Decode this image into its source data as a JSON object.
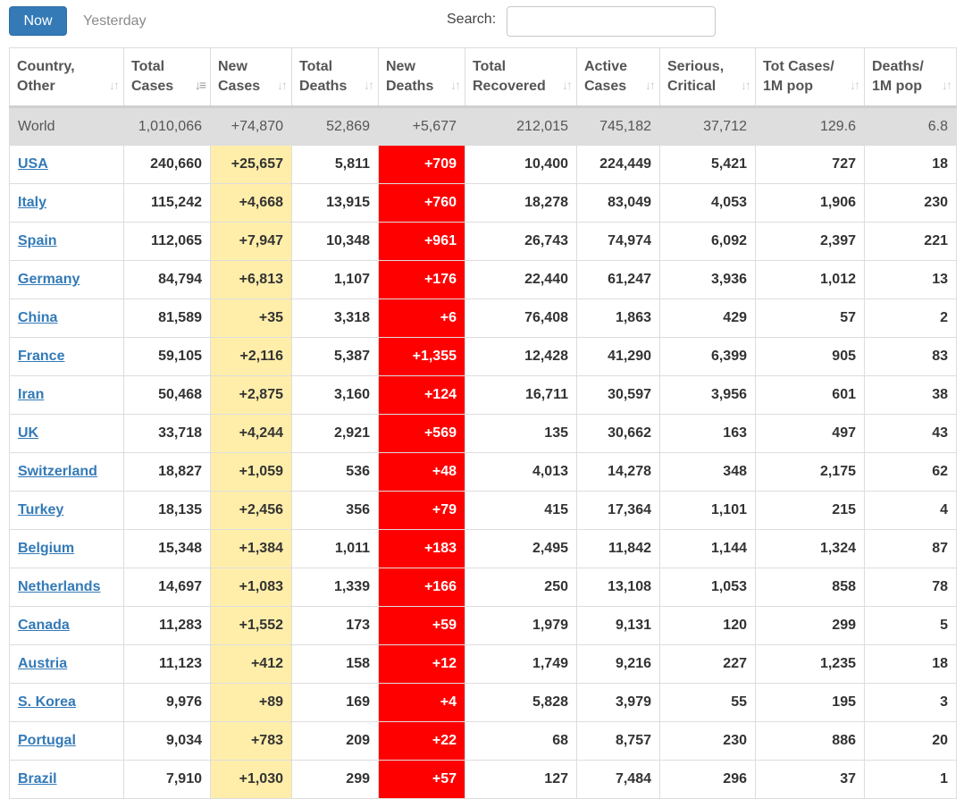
{
  "toolbar": {
    "now_label": "Now",
    "yesterday_label": "Yesterday",
    "search_label": "Search:",
    "search_value": ""
  },
  "colors": {
    "primary_button": "#337ab7",
    "new_cases_highlight": "#ffeeaa",
    "new_deaths_highlight": "#ff0000"
  },
  "table": {
    "headers": [
      {
        "line1": "Country,",
        "line2": "Other"
      },
      {
        "line1": "Total",
        "line2": "Cases"
      },
      {
        "line1": "New",
        "line2": "Cases"
      },
      {
        "line1": "Total",
        "line2": "Deaths"
      },
      {
        "line1": "New",
        "line2": "Deaths"
      },
      {
        "line1": "Total",
        "line2": "Recovered"
      },
      {
        "line1": "Active",
        "line2": "Cases"
      },
      {
        "line1": "Serious,",
        "line2": "Critical"
      },
      {
        "line1": "Tot Cases/",
        "line2": "1M pop"
      },
      {
        "line1": "Deaths/",
        "line2": "1M pop"
      }
    ],
    "world": [
      "World",
      "1,010,066",
      "+74,870",
      "52,869",
      "+5,677",
      "212,015",
      "745,182",
      "37,712",
      "129.6",
      "6.8"
    ],
    "rows": [
      [
        "USA",
        "240,660",
        "+25,657",
        "5,811",
        "+709",
        "10,400",
        "224,449",
        "5,421",
        "727",
        "18"
      ],
      [
        "Italy",
        "115,242",
        "+4,668",
        "13,915",
        "+760",
        "18,278",
        "83,049",
        "4,053",
        "1,906",
        "230"
      ],
      [
        "Spain",
        "112,065",
        "+7,947",
        "10,348",
        "+961",
        "26,743",
        "74,974",
        "6,092",
        "2,397",
        "221"
      ],
      [
        "Germany",
        "84,794",
        "+6,813",
        "1,107",
        "+176",
        "22,440",
        "61,247",
        "3,936",
        "1,012",
        "13"
      ],
      [
        "China",
        "81,589",
        "+35",
        "3,318",
        "+6",
        "76,408",
        "1,863",
        "429",
        "57",
        "2"
      ],
      [
        "France",
        "59,105",
        "+2,116",
        "5,387",
        "+1,355",
        "12,428",
        "41,290",
        "6,399",
        "905",
        "83"
      ],
      [
        "Iran",
        "50,468",
        "+2,875",
        "3,160",
        "+124",
        "16,711",
        "30,597",
        "3,956",
        "601",
        "38"
      ],
      [
        "UK",
        "33,718",
        "+4,244",
        "2,921",
        "+569",
        "135",
        "30,662",
        "163",
        "497",
        "43"
      ],
      [
        "Switzerland",
        "18,827",
        "+1,059",
        "536",
        "+48",
        "4,013",
        "14,278",
        "348",
        "2,175",
        "62"
      ],
      [
        "Turkey",
        "18,135",
        "+2,456",
        "356",
        "+79",
        "415",
        "17,364",
        "1,101",
        "215",
        "4"
      ],
      [
        "Belgium",
        "15,348",
        "+1,384",
        "1,011",
        "+183",
        "2,495",
        "11,842",
        "1,144",
        "1,324",
        "87"
      ],
      [
        "Netherlands",
        "14,697",
        "+1,083",
        "1,339",
        "+166",
        "250",
        "13,108",
        "1,053",
        "858",
        "78"
      ],
      [
        "Canada",
        "11,283",
        "+1,552",
        "173",
        "+59",
        "1,979",
        "9,131",
        "120",
        "299",
        "5"
      ],
      [
        "Austria",
        "11,123",
        "+412",
        "158",
        "+12",
        "1,749",
        "9,216",
        "227",
        "1,235",
        "18"
      ],
      [
        "S. Korea",
        "9,976",
        "+89",
        "169",
        "+4",
        "5,828",
        "3,979",
        "55",
        "195",
        "3"
      ],
      [
        "Portugal",
        "9,034",
        "+783",
        "209",
        "+22",
        "68",
        "8,757",
        "230",
        "886",
        "20"
      ],
      [
        "Brazil",
        "7,910",
        "+1,030",
        "299",
        "+57",
        "127",
        "7,484",
        "296",
        "37",
        "1"
      ]
    ]
  }
}
